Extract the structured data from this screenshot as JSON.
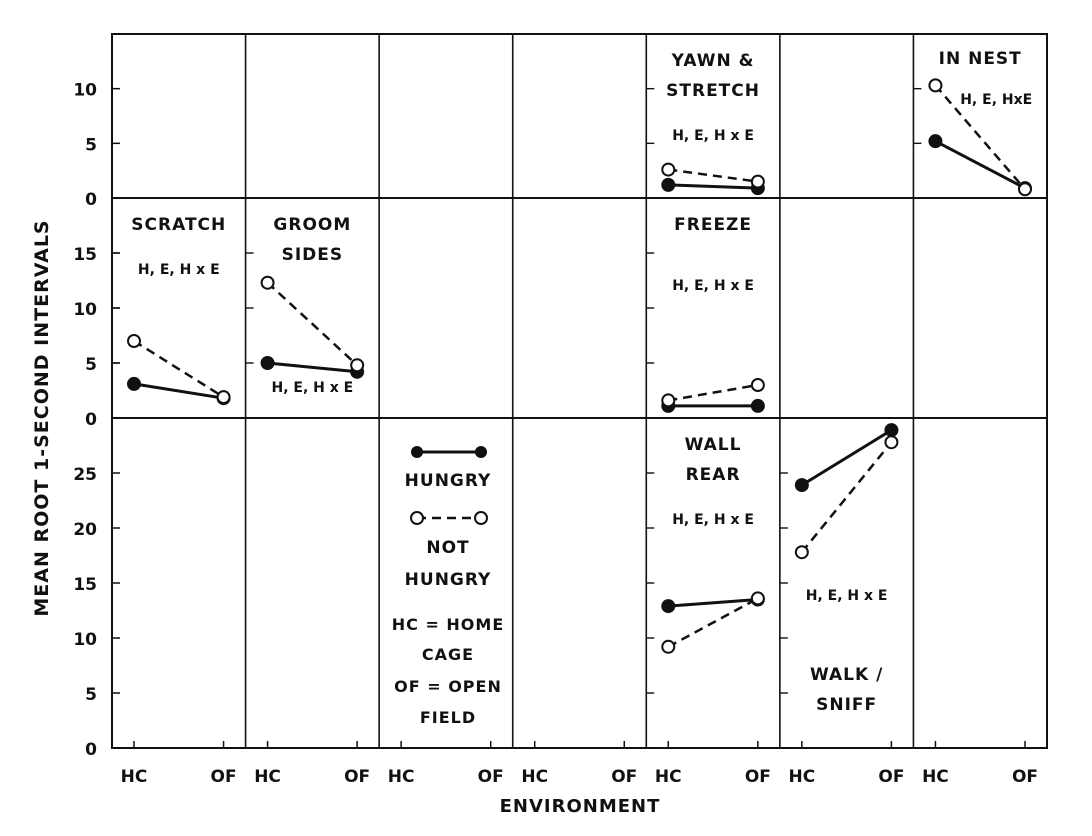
{
  "figure": {
    "y_axis_label": "MEAN ROOT 1-SECOND INTERVALS",
    "x_axis_label": "ENVIRONMENT",
    "x_ticks": [
      "HC",
      "OF"
    ]
  },
  "legend": {
    "hungry": "HUNGRY",
    "not_hungry_line1": "NOT",
    "not_hungry_line2": "HUNGRY",
    "hc_line1": "HC = HOME",
    "hc_line2": "CAGE",
    "of_line1": "OF = OPEN",
    "of_line2": "FIELD"
  },
  "chart_data": [
    {
      "type": "line",
      "row": 0,
      "col": 4,
      "title_lines": [
        "YAWN &",
        "STRETCH"
      ],
      "stats": "H, E, H x E",
      "x": [
        "HC",
        "OF"
      ],
      "ylim": [
        0,
        15
      ],
      "y_ticks": [
        0,
        5,
        10
      ],
      "series": [
        {
          "name": "HUNGRY",
          "style": "solid-filled",
          "values": [
            1.2,
            0.9
          ]
        },
        {
          "name": "NOT HUNGRY",
          "style": "dashed-open",
          "values": [
            2.6,
            1.5
          ]
        }
      ]
    },
    {
      "type": "line",
      "row": 0,
      "col": 6,
      "title_lines": [
        "IN  NEST"
      ],
      "stats": "H, E, HxE",
      "x": [
        "HC",
        "OF"
      ],
      "ylim": [
        0,
        15
      ],
      "y_ticks": [
        0,
        5,
        10
      ],
      "series": [
        {
          "name": "HUNGRY",
          "style": "solid-filled",
          "values": [
            5.2,
            0.9
          ]
        },
        {
          "name": "NOT HUNGRY",
          "style": "dashed-open",
          "values": [
            10.3,
            0.8
          ]
        }
      ]
    },
    {
      "type": "line",
      "row": 1,
      "col": 0,
      "title_lines": [
        "SCRATCH"
      ],
      "stats": "H, E, H x E",
      "x": [
        "HC",
        "OF"
      ],
      "ylim": [
        0,
        20
      ],
      "y_ticks": [
        0,
        5,
        10,
        15
      ],
      "series": [
        {
          "name": "HUNGRY",
          "style": "solid-filled",
          "values": [
            3.1,
            1.8
          ]
        },
        {
          "name": "NOT HUNGRY",
          "style": "dashed-open",
          "values": [
            7.0,
            1.9
          ]
        }
      ]
    },
    {
      "type": "line",
      "row": 1,
      "col": 1,
      "title_lines": [
        "GROOM",
        "SIDES"
      ],
      "stats": "H, E, H x E",
      "x": [
        "HC",
        "OF"
      ],
      "ylim": [
        0,
        20
      ],
      "y_ticks": [
        0,
        5,
        10,
        15
      ],
      "series": [
        {
          "name": "HUNGRY",
          "style": "solid-filled",
          "values": [
            5.0,
            4.2
          ]
        },
        {
          "name": "NOT HUNGRY",
          "style": "dashed-open",
          "values": [
            12.3,
            4.8
          ]
        }
      ]
    },
    {
      "type": "line",
      "row": 1,
      "col": 4,
      "title_lines": [
        "FREEZE"
      ],
      "stats": "H, E, H x E",
      "x": [
        "HC",
        "OF"
      ],
      "ylim": [
        0,
        20
      ],
      "y_ticks": [
        0,
        5,
        10,
        15
      ],
      "series": [
        {
          "name": "HUNGRY",
          "style": "solid-filled",
          "values": [
            1.1,
            1.1
          ]
        },
        {
          "name": "NOT HUNGRY",
          "style": "dashed-open",
          "values": [
            1.6,
            3.0
          ]
        }
      ]
    },
    {
      "type": "line",
      "row": 2,
      "col": 4,
      "title_lines": [
        "WALL",
        "REAR"
      ],
      "stats": "H, E, H x E",
      "x": [
        "HC",
        "OF"
      ],
      "ylim": [
        0,
        30
      ],
      "y_ticks": [
        0,
        5,
        10,
        15,
        20,
        25
      ],
      "series": [
        {
          "name": "HUNGRY",
          "style": "solid-filled",
          "values": [
            12.9,
            13.5
          ]
        },
        {
          "name": "NOT HUNGRY",
          "style": "dashed-open",
          "values": [
            9.2,
            13.6
          ]
        }
      ]
    },
    {
      "type": "line",
      "row": 2,
      "col": 5,
      "title_lines": [
        "WALK /",
        "SNIFF"
      ],
      "stats": "H, E, H x E",
      "x": [
        "HC",
        "OF"
      ],
      "ylim": [
        0,
        30
      ],
      "y_ticks": [
        0,
        5,
        10,
        15,
        20,
        25
      ],
      "series": [
        {
          "name": "HUNGRY",
          "style": "solid-filled",
          "values": [
            23.9,
            28.9
          ]
        },
        {
          "name": "NOT HUNGRY",
          "style": "dashed-open",
          "values": [
            17.8,
            27.8
          ]
        }
      ]
    }
  ]
}
